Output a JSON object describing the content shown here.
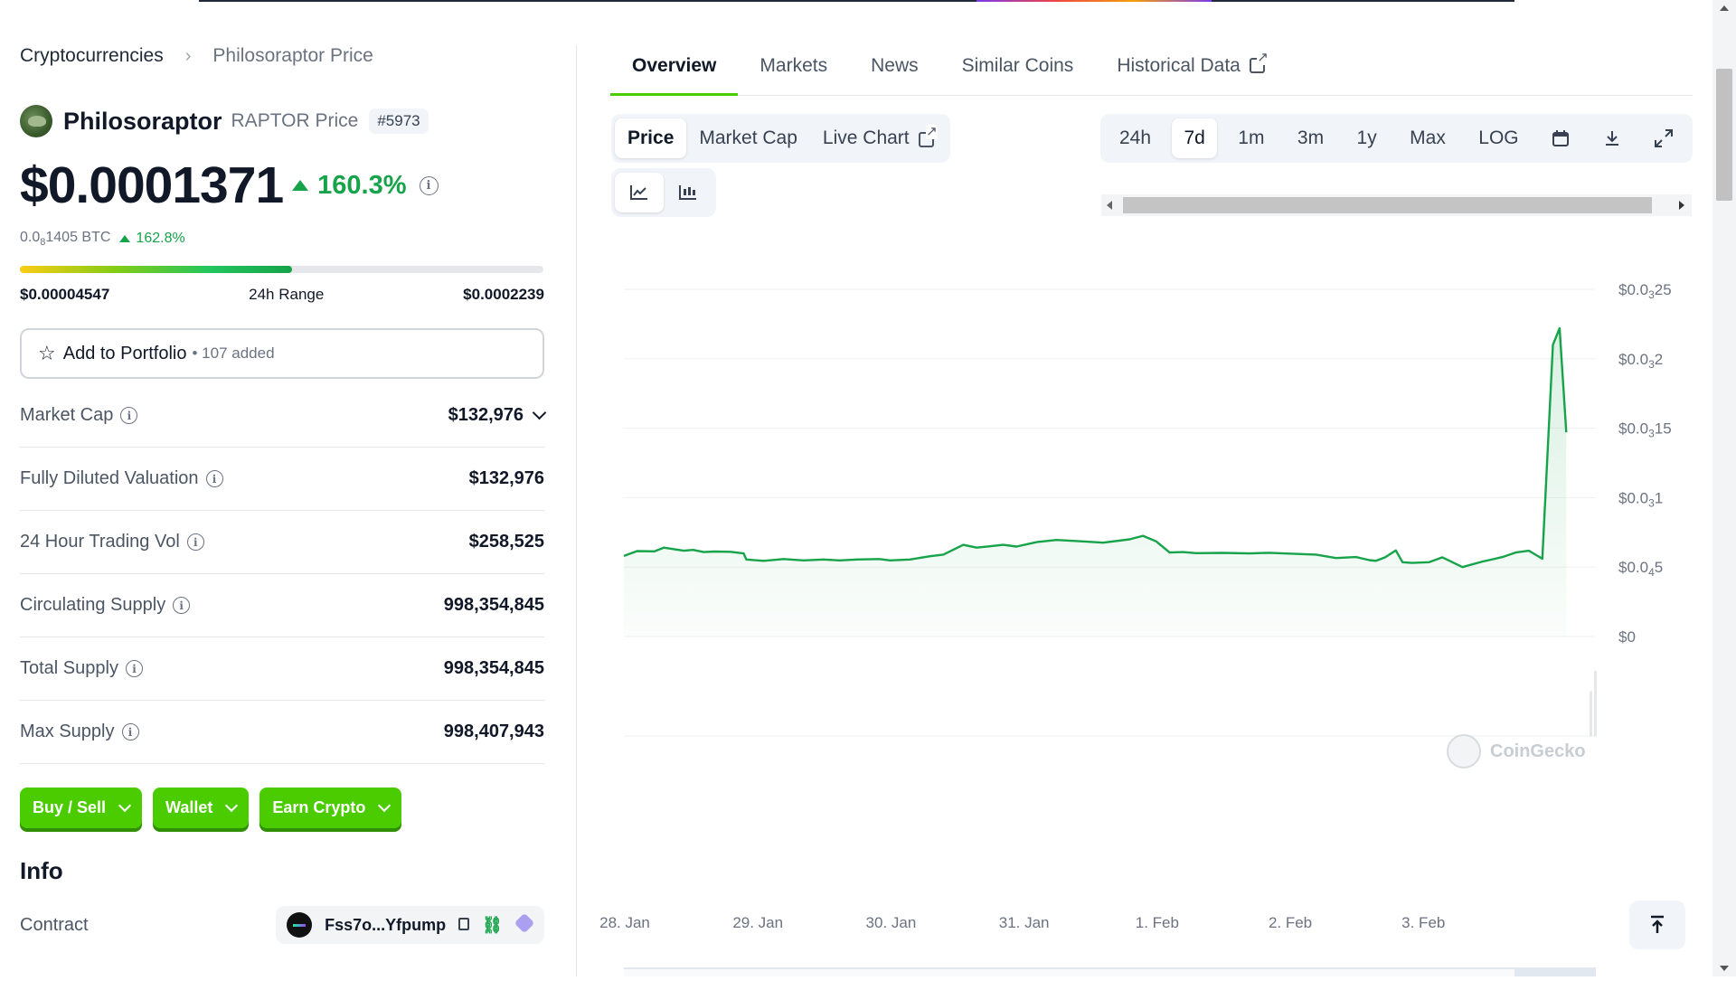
{
  "breadcrumb": {
    "root": "Cryptocurrencies",
    "separator": "›",
    "current": "Philosoraptor Price"
  },
  "coin": {
    "name": "Philosoraptor",
    "symbol_label": "RAPTOR Price",
    "rank": "#5973",
    "price": "$0.0001371",
    "change_24h": "160.3%",
    "btc_price_prefix": "0.0",
    "btc_price_sub": "8",
    "btc_price_suffix": "1405 BTC",
    "btc_change": "162.8%"
  },
  "range_24h": {
    "low": "$0.00004547",
    "label": "24h Range",
    "high": "$0.0002239",
    "position_fraction": 0.52
  },
  "portfolio": {
    "label": "Add to Portfolio",
    "added": "• 107 added"
  },
  "stats": [
    {
      "label": "Market Cap",
      "value": "$132,976",
      "has_dropdown": true
    },
    {
      "label": "Fully Diluted Valuation",
      "value": "$132,976"
    },
    {
      "label": "24 Hour Trading Vol",
      "value": "$258,525"
    },
    {
      "label": "Circulating Supply",
      "value": "998,354,845"
    },
    {
      "label": "Total Supply",
      "value": "998,354,845"
    },
    {
      "label": "Max Supply",
      "value": "998,407,943"
    }
  ],
  "actions": {
    "buy_sell": "Buy / Sell",
    "wallet": "Wallet",
    "earn": "Earn Crypto"
  },
  "info": {
    "heading": "Info",
    "contract_label": "Contract",
    "contract_value": "Fss7o...Yfpump"
  },
  "tabs": [
    "Overview",
    "Markets",
    "News",
    "Similar Coins",
    "Historical Data"
  ],
  "chart_controls": {
    "metrics": [
      "Price",
      "Market Cap",
      "Live Chart"
    ],
    "ranges": [
      "24h",
      "7d",
      "1m",
      "3m",
      "1y",
      "Max",
      "LOG"
    ],
    "active_range": "7d"
  },
  "watermark": "CoinGecko",
  "colors": {
    "accent_green": "#4bcc00",
    "up_green": "#16a34a",
    "line_green": "#16a34a"
  },
  "chart_data": {
    "type": "area",
    "title": "",
    "xlabel": "",
    "ylabel": "",
    "x_ticks": [
      "28. Jan",
      "29. Jan",
      "30. Jan",
      "31. Jan",
      "1. Feb",
      "2. Feb",
      "3. Feb"
    ],
    "y_ticks": [
      {
        "value": 0,
        "pre": "$0",
        "sub": "",
        "post": ""
      },
      {
        "value": 5e-05,
        "pre": "$0.0",
        "sub": "4",
        "post": "5"
      },
      {
        "value": 0.0001,
        "pre": "$0.0",
        "sub": "3",
        "post": "1"
      },
      {
        "value": 0.00015,
        "pre": "$0.0",
        "sub": "3",
        "post": "15"
      },
      {
        "value": 0.0002,
        "pre": "$0.0",
        "sub": "3",
        "post": "2"
      },
      {
        "value": 0.00025,
        "pre": "$0.0",
        "sub": "3",
        "post": "25"
      }
    ],
    "x_range_days": [
      0,
      7.35
    ],
    "ylim": [
      0,
      0.00025
    ],
    "series": [
      {
        "name": "Price",
        "x": [
          0,
          0.1,
          0.23,
          0.3,
          0.45,
          0.52,
          0.6,
          0.68,
          0.8,
          0.9,
          0.92,
          1.05,
          1.2,
          1.35,
          1.5,
          1.62,
          1.75,
          1.92,
          2.0,
          2.15,
          2.3,
          2.4,
          2.55,
          2.65,
          2.75,
          2.85,
          2.95,
          3.1,
          3.25,
          3.45,
          3.6,
          3.8,
          3.9,
          4.0,
          4.1,
          4.2,
          4.3,
          4.5,
          4.7,
          4.85,
          5.0,
          5.2,
          5.35,
          5.5,
          5.6,
          5.65,
          5.72,
          5.8,
          5.85,
          5.92,
          6.05,
          6.15,
          6.3,
          6.45,
          6.5,
          6.6,
          6.7,
          6.8,
          6.9,
          6.98,
          7.03,
          7.08
        ],
        "values": [
          5.8e-05,
          6.15e-05,
          6.13e-05,
          6.4e-05,
          6.18e-05,
          6.24e-05,
          6.08e-05,
          6.12e-05,
          6.1e-05,
          5.98e-05,
          5.55e-05,
          5.45e-05,
          5.58e-05,
          5.48e-05,
          5.55e-05,
          5.48e-05,
          5.55e-05,
          5.58e-05,
          5.48e-05,
          5.55e-05,
          5.78e-05,
          5.9e-05,
          6.6e-05,
          6.4e-05,
          6.5e-05,
          6.6e-05,
          6.48e-05,
          6.8e-05,
          6.95e-05,
          6.85e-05,
          6.76e-05,
          7e-05,
          7.25e-05,
          6.85e-05,
          6.05e-05,
          6.08e-05,
          6e-05,
          6.02e-05,
          5.98e-05,
          6.03e-05,
          5.97e-05,
          5.9e-05,
          5.65e-05,
          5.72e-05,
          5.5e-05,
          5.45e-05,
          5.7e-05,
          6.2e-05,
          5.35e-05,
          5.3e-05,
          5.35e-05,
          5.7e-05,
          5e-05,
          5.4e-05,
          5.5e-05,
          5.72e-05,
          6.05e-05,
          6.18e-05,
          5.6e-05,
          0.00021,
          0.000222,
          0.000147
        ]
      }
    ],
    "volume": {
      "values_relative": [
        0.0,
        0.55,
        0.8
      ]
    }
  }
}
